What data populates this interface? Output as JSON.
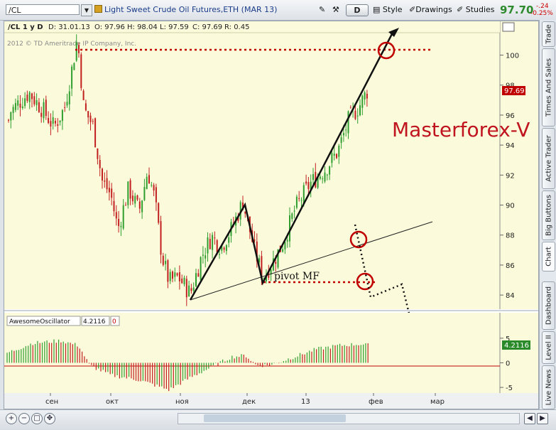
{
  "toolbar": {
    "symbol": "/CL",
    "description": "Light Sweet Crude Oil Futures,ETH (MAR 13)",
    "period_button": "D",
    "style_label": "Style",
    "drawings_label": "Drawings",
    "studies_label": "Studies",
    "last_price": "97.70",
    "change": "-.24",
    "change_pct": "-0.25%"
  },
  "chart_header": {
    "symbol_period": "/CL 1 y D",
    "date": "D: 31.01.13",
    "open": "O: 97.96",
    "high": "H: 98.04",
    "low": "L: 97.59",
    "close": "C: 97.69",
    "range": "R: 0.45"
  },
  "copyright": "2012 © TD Ameritrade IP Company, Inc.",
  "watermark": "Masterforex-V",
  "annotation": "pivot MF",
  "price_marker": "97.69",
  "oscillator": {
    "name": "AwesomeOscillator",
    "value": "4.2116",
    "param": "0",
    "marker": "4.2116"
  },
  "colors": {
    "up": "#2f9e2f",
    "down": "#c21f1f",
    "bg": "#fbfbdc",
    "accent_red": "#c00000"
  },
  "chart_data": {
    "type": "candlestick",
    "y_ticks": [
      "100",
      "98",
      "96",
      "94",
      "92",
      "90",
      "88",
      "86",
      "84"
    ],
    "osc_ticks": [
      "5",
      "0",
      "-5"
    ],
    "x_ticks": [
      "сен",
      "окт",
      "ноя",
      "дек",
      "13",
      "фев",
      "мар"
    ],
    "ylim": [
      83.2,
      101.4
    ],
    "osc_ylim": [
      -6,
      7
    ],
    "grid": false
  },
  "sidebar": {
    "tabs": [
      "Trade",
      "Times And Sales",
      "Active Trader",
      "Big Buttons",
      "Chart",
      "Dashboard",
      "Level II",
      "Live News"
    ]
  },
  "icons": [
    "drawing-tool-icon",
    "wrench-icon",
    "style-icon",
    "drawings-icon",
    "studies-icon",
    "zoom-in-icon",
    "zoom-out-icon",
    "pan-icon",
    "scroll-left-icon",
    "scroll-right-icon",
    "link-icon"
  ]
}
